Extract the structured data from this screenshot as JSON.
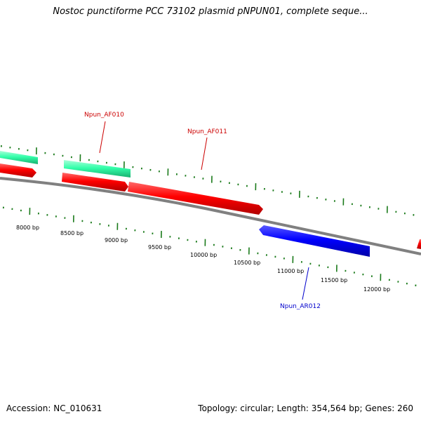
{
  "title": "Nostoc punctiforme PCC 73102 plasmid pNPUN01, complete seque...",
  "footer": {
    "accession": "Accession: NC_010631",
    "summary": "Topology: circular; Length: 354,564 bp; Genes: 260"
  },
  "scale_labels": [
    "8000 bp",
    "8500 bp",
    "9000 bp",
    "9500 bp",
    "10000 bp",
    "10500 bp",
    "11000 bp",
    "11500 bp",
    "12000 bp"
  ],
  "gene_labels": [
    {
      "name": "Npun_AF010",
      "color": "#cc0000"
    },
    {
      "name": "Npun_AF011",
      "color": "#cc0000"
    },
    {
      "name": "Npun_AR012",
      "color": "#0000cc"
    }
  ],
  "colors": {
    "backbone": "#808080",
    "cds_forward": "#ff0000",
    "cds_reverse": "#0000ff",
    "gene_forward": "#33ffaa",
    "tick": "#1a7a1a"
  }
}
